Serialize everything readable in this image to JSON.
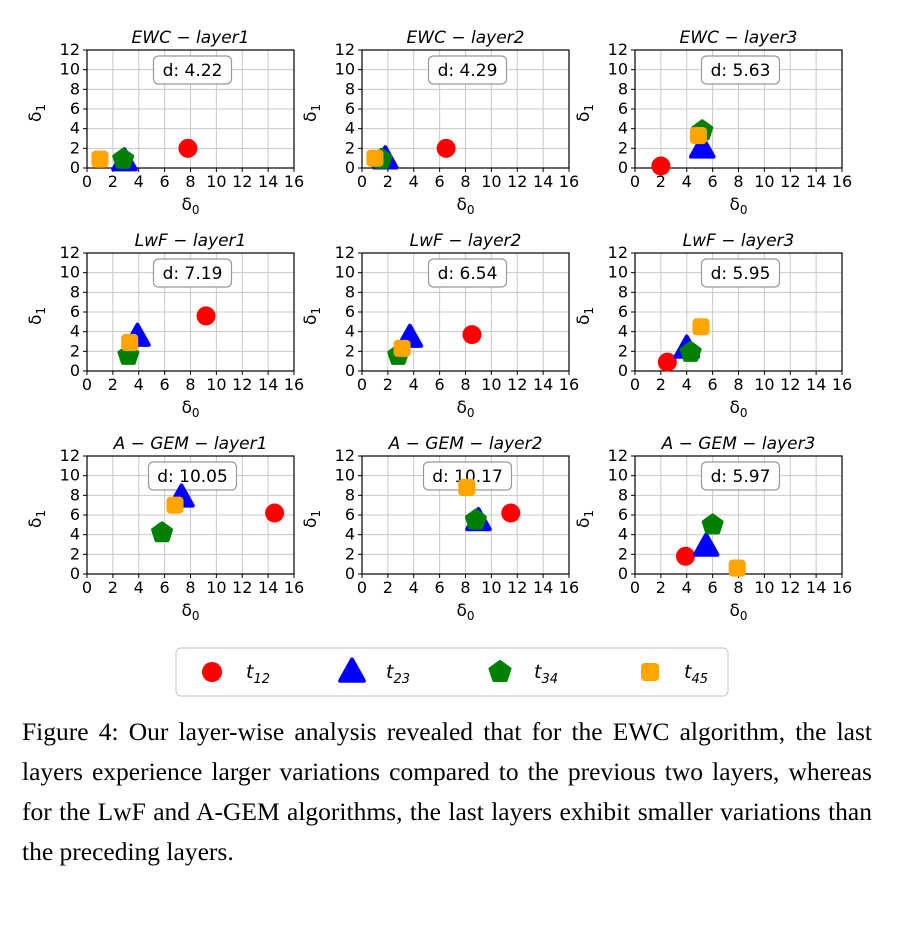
{
  "chart_data": [
    {
      "type": "scatter",
      "title": "EWC − layer1",
      "xlabel": "δ0",
      "ylabel": "δ1",
      "xlim": [
        0,
        16
      ],
      "ylim": [
        0,
        12
      ],
      "xticks": [
        0,
        2,
        4,
        6,
        8,
        10,
        12,
        14,
        16
      ],
      "yticks": [
        0,
        2,
        4,
        6,
        8,
        10,
        12
      ],
      "grid": true,
      "annotation": "d: 4.22",
      "series": [
        {
          "name": "t12",
          "x": 7.8,
          "y": 2.0
        },
        {
          "name": "t23",
          "x": 2.9,
          "y": 0.7
        },
        {
          "name": "t34",
          "x": 2.8,
          "y": 0.9
        },
        {
          "name": "t45",
          "x": 1.0,
          "y": 0.9
        }
      ]
    },
    {
      "type": "scatter",
      "title": "EWC − layer2",
      "xlabel": "δ0",
      "ylabel": "δ1",
      "xlim": [
        0,
        16
      ],
      "ylim": [
        0,
        12
      ],
      "xticks": [
        0,
        2,
        4,
        6,
        8,
        10,
        12,
        14,
        16
      ],
      "yticks": [
        0,
        2,
        4,
        6,
        8,
        10,
        12
      ],
      "grid": true,
      "annotation": "d: 4.29",
      "series": [
        {
          "name": "t12",
          "x": 6.5,
          "y": 2.0
        },
        {
          "name": "t23",
          "x": 1.8,
          "y": 0.9
        },
        {
          "name": "t34",
          "x": 1.5,
          "y": 0.9
        },
        {
          "name": "t45",
          "x": 1.0,
          "y": 1.0
        }
      ]
    },
    {
      "type": "scatter",
      "title": "EWC − layer3",
      "xlabel": "δ0",
      "ylabel": "δ1",
      "xlim": [
        0,
        16
      ],
      "ylim": [
        0,
        12
      ],
      "xticks": [
        0,
        2,
        4,
        6,
        8,
        10,
        12,
        14,
        16
      ],
      "yticks": [
        0,
        2,
        4,
        6,
        8,
        10,
        12
      ],
      "grid": true,
      "annotation": "d: 5.63",
      "series": [
        {
          "name": "t12",
          "x": 2.0,
          "y": 0.2
        },
        {
          "name": "t23",
          "x": 5.2,
          "y": 2.0
        },
        {
          "name": "t34",
          "x": 5.2,
          "y": 3.8
        },
        {
          "name": "t45",
          "x": 4.9,
          "y": 3.3
        }
      ]
    },
    {
      "type": "scatter",
      "title": "LwF − layer1",
      "xlabel": "δ0",
      "ylabel": "δ1",
      "xlim": [
        0,
        16
      ],
      "ylim": [
        0,
        12
      ],
      "xticks": [
        0,
        2,
        4,
        6,
        8,
        10,
        12,
        14,
        16
      ],
      "yticks": [
        0,
        2,
        4,
        6,
        8,
        10,
        12
      ],
      "grid": true,
      "annotation": "d: 7.19",
      "series": [
        {
          "name": "t12",
          "x": 9.2,
          "y": 5.6
        },
        {
          "name": "t23",
          "x": 3.9,
          "y": 3.5
        },
        {
          "name": "t34",
          "x": 3.2,
          "y": 1.6
        },
        {
          "name": "t45",
          "x": 3.3,
          "y": 2.9
        }
      ]
    },
    {
      "type": "scatter",
      "title": "LwF − layer2",
      "xlabel": "δ0",
      "ylabel": "δ1",
      "xlim": [
        0,
        16
      ],
      "ylim": [
        0,
        12
      ],
      "xticks": [
        0,
        2,
        4,
        6,
        8,
        10,
        12,
        14,
        16
      ],
      "yticks": [
        0,
        2,
        4,
        6,
        8,
        10,
        12
      ],
      "grid": true,
      "annotation": "d: 6.54",
      "series": [
        {
          "name": "t12",
          "x": 8.5,
          "y": 3.7
        },
        {
          "name": "t23",
          "x": 3.7,
          "y": 3.4
        },
        {
          "name": "t34",
          "x": 2.8,
          "y": 1.6
        },
        {
          "name": "t45",
          "x": 3.1,
          "y": 2.3
        }
      ]
    },
    {
      "type": "scatter",
      "title": "LwF − layer3",
      "xlabel": "δ0",
      "ylabel": "δ1",
      "xlim": [
        0,
        16
      ],
      "ylim": [
        0,
        12
      ],
      "xticks": [
        0,
        2,
        4,
        6,
        8,
        10,
        12,
        14,
        16
      ],
      "yticks": [
        0,
        2,
        4,
        6,
        8,
        10,
        12
      ],
      "grid": true,
      "annotation": "d: 5.95",
      "series": [
        {
          "name": "t12",
          "x": 2.5,
          "y": 0.9
        },
        {
          "name": "t23",
          "x": 4.0,
          "y": 2.3
        },
        {
          "name": "t34",
          "x": 4.3,
          "y": 1.9
        },
        {
          "name": "t45",
          "x": 5.1,
          "y": 4.5
        }
      ]
    },
    {
      "type": "scatter",
      "title": "A − GEM − layer1",
      "xlabel": "δ0",
      "ylabel": "δ1",
      "xlim": [
        0,
        16
      ],
      "ylim": [
        0,
        12
      ],
      "xticks": [
        0,
        2,
        4,
        6,
        8,
        10,
        12,
        14,
        16
      ],
      "yticks": [
        0,
        2,
        4,
        6,
        8,
        10,
        12
      ],
      "grid": true,
      "annotation": "d: 10.05",
      "series": [
        {
          "name": "t12",
          "x": 14.5,
          "y": 6.2
        },
        {
          "name": "t23",
          "x": 7.3,
          "y": 7.8
        },
        {
          "name": "t34",
          "x": 5.8,
          "y": 4.2
        },
        {
          "name": "t45",
          "x": 6.8,
          "y": 7.0
        }
      ]
    },
    {
      "type": "scatter",
      "title": "A − GEM − layer2",
      "xlabel": "δ0",
      "ylabel": "δ1",
      "xlim": [
        0,
        16
      ],
      "ylim": [
        0,
        12
      ],
      "xticks": [
        0,
        2,
        4,
        6,
        8,
        10,
        12,
        14,
        16
      ],
      "yticks": [
        0,
        2,
        4,
        6,
        8,
        10,
        12
      ],
      "grid": true,
      "annotation": "d: 10.17",
      "series": [
        {
          "name": "t12",
          "x": 11.5,
          "y": 6.2
        },
        {
          "name": "t23",
          "x": 9.0,
          "y": 5.4
        },
        {
          "name": "t34",
          "x": 8.8,
          "y": 5.5
        },
        {
          "name": "t45",
          "x": 8.1,
          "y": 8.8
        }
      ]
    },
    {
      "type": "scatter",
      "title": "A − GEM − layer3",
      "xlabel": "δ0",
      "ylabel": "δ1",
      "xlim": [
        0,
        16
      ],
      "ylim": [
        0,
        12
      ],
      "xticks": [
        0,
        2,
        4,
        6,
        8,
        10,
        12,
        14,
        16
      ],
      "yticks": [
        0,
        2,
        4,
        6,
        8,
        10,
        12
      ],
      "grid": true,
      "annotation": "d: 5.97",
      "series": [
        {
          "name": "t12",
          "x": 3.9,
          "y": 1.8
        },
        {
          "name": "t23",
          "x": 5.5,
          "y": 2.8
        },
        {
          "name": "t34",
          "x": 6.0,
          "y": 5.0
        },
        {
          "name": "t45",
          "x": 7.9,
          "y": 0.6
        }
      ]
    }
  ],
  "legend": [
    {
      "label": "t",
      "sub": "12",
      "color": "#ff0000",
      "marker": "circle"
    },
    {
      "label": "t",
      "sub": "23",
      "color": "#0000ff",
      "marker": "triangle"
    },
    {
      "label": "t",
      "sub": "34",
      "color": "#008000",
      "marker": "pentagon"
    },
    {
      "label": "t",
      "sub": "45",
      "color": "#ffa500",
      "marker": "square"
    }
  ],
  "caption": "Figure 4: Our layer-wise analysis revealed that for the EWC algorithm, the last layers experience larger variations compared to the previous two layers, whereas for the LwF and A-GEM algorithms, the last layers exhibit smaller variations than the preceding layers."
}
